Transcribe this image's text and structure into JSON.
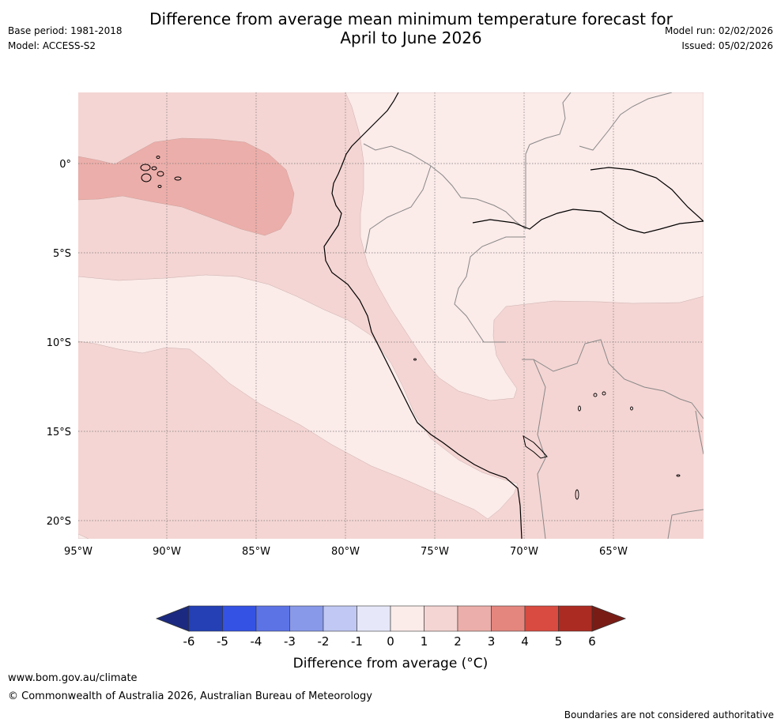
{
  "title_line1": "Difference from average mean minimum temperature forecast for",
  "title_line2": "April to June 2026",
  "header_left": {
    "base_period": "Base period: 1981-2018",
    "model": "Model: ACCESS-S2"
  },
  "header_right": {
    "model_run": "Model run: 02/02/2026",
    "issued": "Issued: 05/02/2026"
  },
  "map": {
    "lat_labels": [
      "0°",
      "5°S",
      "10°S",
      "15°S",
      "20°S"
    ],
    "lon_labels": [
      "95°W",
      "90°W",
      "85°W",
      "80°W",
      "75°W",
      "70°W",
      "65°W"
    ],
    "fill_colors": {
      "level_0_1": "#fbebe9",
      "level_1_2": "#f4d5d3",
      "level_2_3": "#ecaeaa"
    }
  },
  "colorbar": {
    "ticks": [
      "-6",
      "-5",
      "-4",
      "-3",
      "-2",
      "-1",
      "0",
      "1",
      "2",
      "3",
      "4",
      "5",
      "6"
    ],
    "colors": [
      "#1b2a80",
      "#2440b4",
      "#3452e3",
      "#5c73e6",
      "#8899ea",
      "#c0c8f3",
      "#e6e8fa",
      "#fbebe9",
      "#f4d5d3",
      "#ecaeaa",
      "#e4867e",
      "#d94b40",
      "#ab2b22",
      "#7a1c16"
    ],
    "label": "Difference from average (°C)"
  },
  "footer": {
    "url": "www.bom.gov.au/climate",
    "copyright": "© Commonwealth of Australia 2026, Australian Bureau of Meteorology",
    "note": "Boundaries are not considered authoritative"
  }
}
